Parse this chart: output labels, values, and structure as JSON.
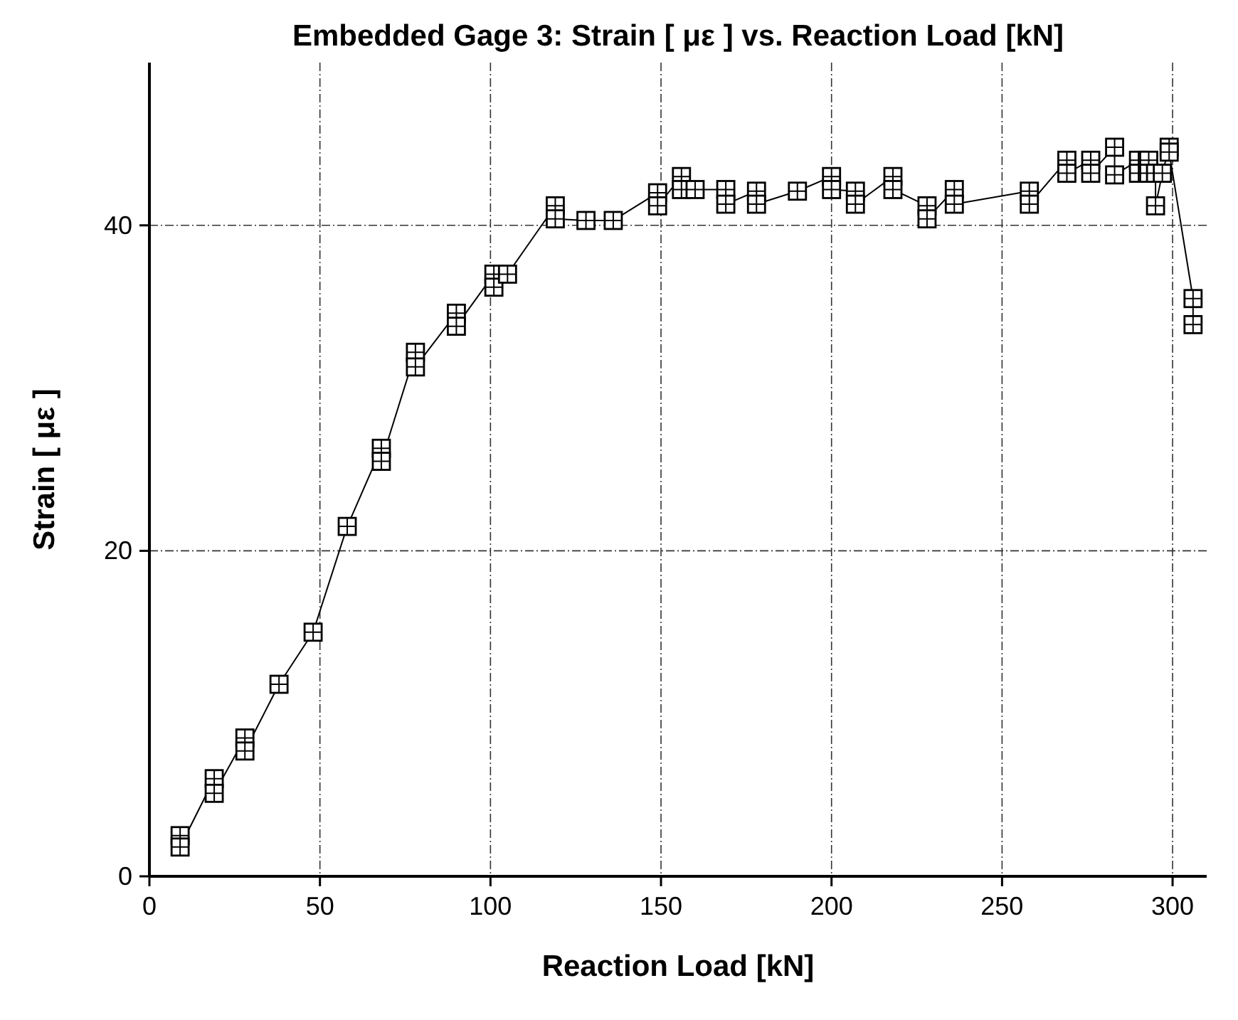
{
  "chart_data": {
    "type": "line",
    "title": "Embedded Gage 3: Strain [ με ] vs. Reaction Load [kN]",
    "xlabel": "Reaction Load [kN]",
    "ylabel": "Strain [ με ]",
    "xlim": [
      0,
      310
    ],
    "xticks": [
      0,
      50,
      100,
      150,
      200,
      250,
      300
    ],
    "ylim": [
      0,
      50
    ],
    "yticks": [
      0,
      20,
      40
    ],
    "grid": true,
    "marker": "square",
    "line_style": "solid",
    "series": [
      {
        "color": "#000000",
        "x": [
          9,
          9,
          19,
          19,
          28,
          28,
          38,
          48,
          58,
          68,
          68,
          78,
          78,
          90,
          90,
          101,
          101,
          105,
          119,
          119,
          128,
          136,
          149,
          149,
          156,
          156,
          160,
          169,
          169,
          178,
          178,
          190,
          200,
          200,
          207,
          207,
          218,
          218,
          228,
          228,
          236,
          236,
          258,
          258,
          269,
          269,
          276,
          276,
          283,
          283,
          290,
          290,
          293,
          293,
          295,
          295,
          297,
          299,
          299,
          306,
          306
        ],
        "values": [
          2.5,
          1.8,
          6,
          5.1,
          8.5,
          7.7,
          11.8,
          15,
          21.5,
          26.3,
          25.5,
          32.2,
          31.3,
          34.6,
          33.8,
          37,
          36.2,
          37,
          41.2,
          40.4,
          40.3,
          40.3,
          42,
          41.2,
          43,
          42.2,
          42.2,
          42.2,
          41.3,
          42.1,
          41.3,
          42.1,
          43,
          42.2,
          42.1,
          41.3,
          43,
          42.2,
          41.2,
          40.4,
          42.2,
          41.3,
          42.1,
          41.3,
          44,
          43.2,
          44,
          43.2,
          44.8,
          43.1,
          44,
          43.2,
          44,
          43.2,
          43.2,
          41.2,
          43.2,
          44.8,
          44.5,
          35.5,
          33.9
        ]
      }
    ]
  }
}
